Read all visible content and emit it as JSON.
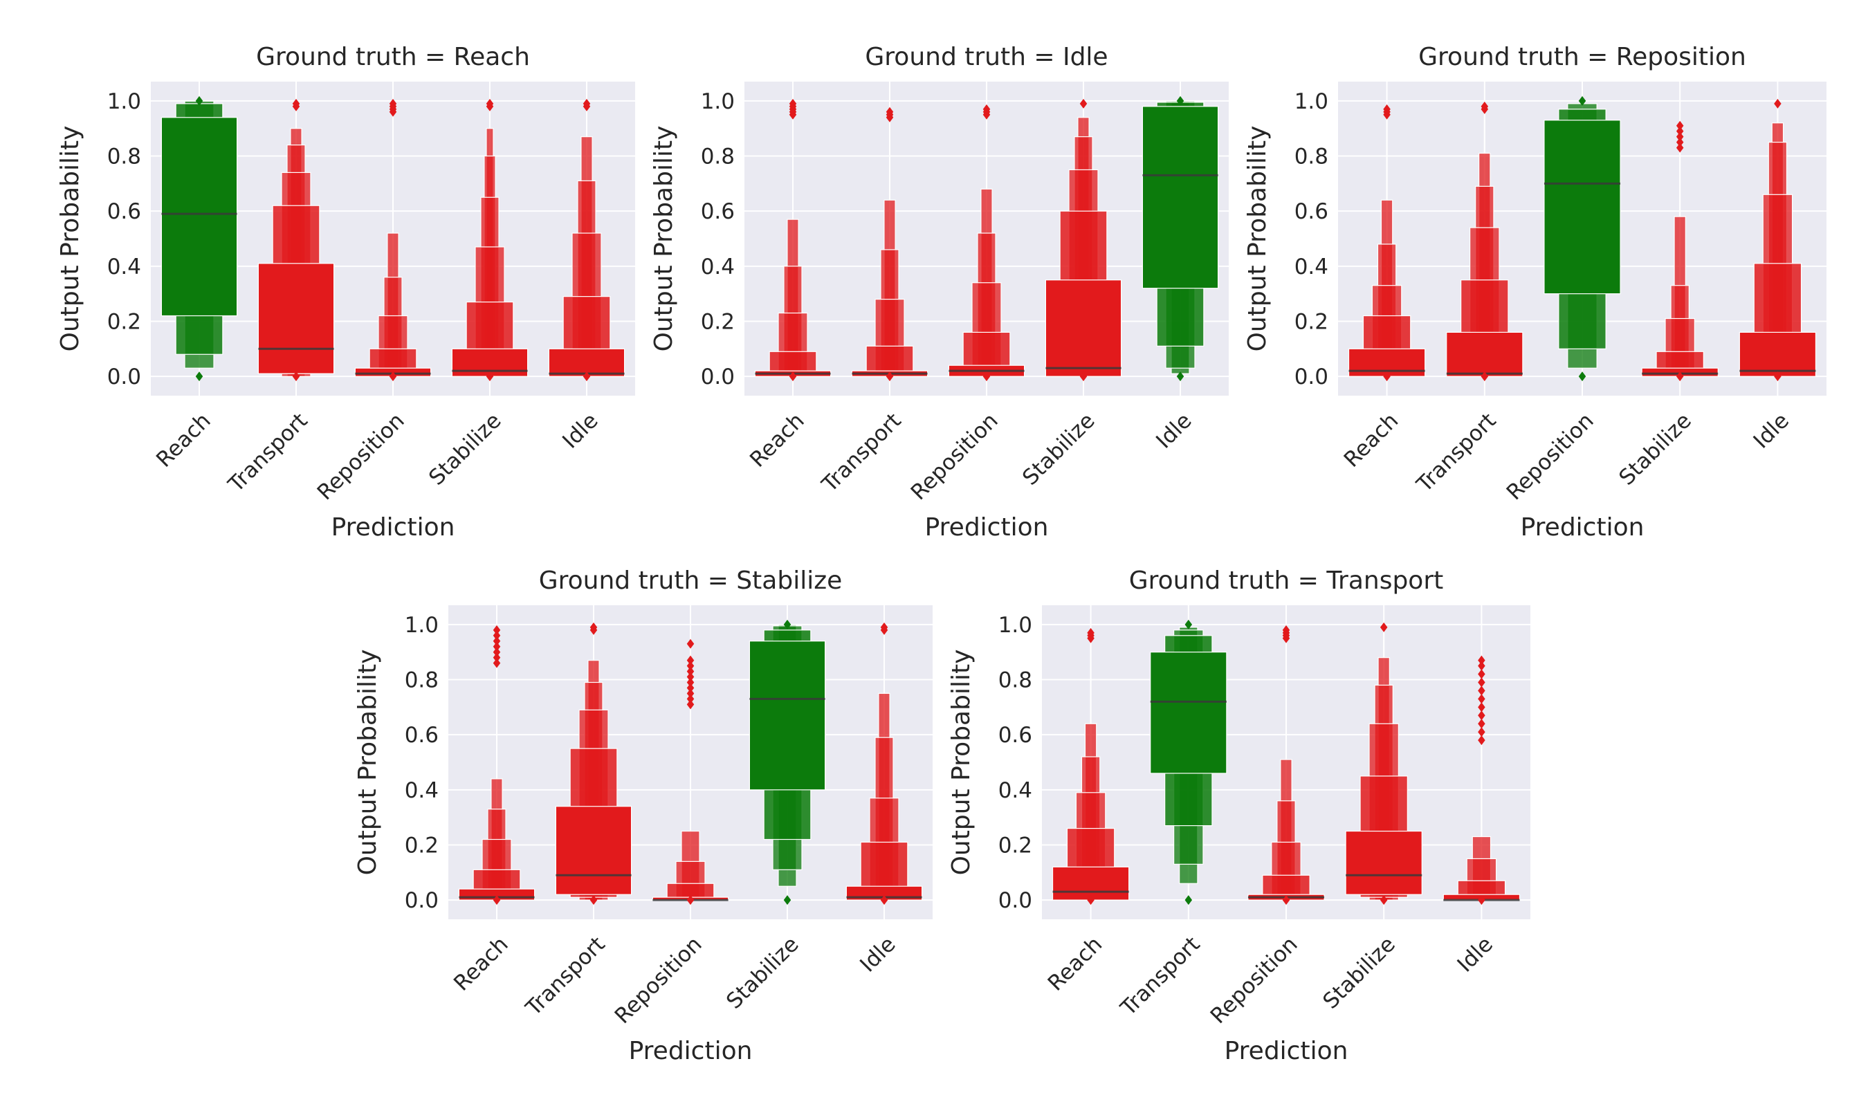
{
  "chart_data": [
    {
      "type": "boxen",
      "title": "Ground truth = Reach",
      "ground_truth": "Reach",
      "xlabel": "Prediction",
      "ylabel": "Output Probability",
      "ylim": [
        -0.07,
        1.07
      ],
      "yticks": [
        "0.0",
        "0.2",
        "0.4",
        "0.6",
        "0.8",
        "1.0"
      ],
      "categories": [
        "Reach",
        "Transport",
        "Reposition",
        "Stabilize",
        "Idle"
      ],
      "distributions": [
        {
          "category": "Reach",
          "correct": true,
          "median": 0.59,
          "levels": [
            [
              0.22,
              0.94
            ],
            [
              0.08,
              0.99
            ],
            [
              0.03,
              0.999
            ]
          ],
          "whisker": [
            0.03,
            1.0
          ],
          "outliers": [
            0.0,
            1.0
          ]
        },
        {
          "category": "Transport",
          "correct": false,
          "median": 0.1,
          "levels": [
            [
              0.01,
              0.41
            ],
            [
              0.01,
              0.62
            ],
            [
              0.0,
              0.74
            ],
            [
              0.0,
              0.84
            ],
            [
              0.0,
              0.9
            ]
          ],
          "whisker": [
            0.0,
            0.97
          ],
          "outliers": [
            0.0,
            0.99,
            0.98
          ]
        },
        {
          "category": "Reposition",
          "correct": false,
          "median": 0.01,
          "levels": [
            [
              0.0,
              0.03
            ],
            [
              0.0,
              0.1
            ],
            [
              0.0,
              0.22
            ],
            [
              0.0,
              0.36
            ],
            [
              0.0,
              0.52
            ]
          ],
          "whisker": [
            0.0,
            0.96
          ],
          "outliers": [
            0.0,
            0.96,
            0.97,
            0.98,
            0.99
          ]
        },
        {
          "category": "Stabilize",
          "correct": false,
          "median": 0.02,
          "levels": [
            [
              0.0,
              0.1
            ],
            [
              0.0,
              0.27
            ],
            [
              0.0,
              0.47
            ],
            [
              0.0,
              0.65
            ],
            [
              0.0,
              0.8
            ],
            [
              0.0,
              0.9
            ]
          ],
          "whisker": [
            0.0,
            0.97
          ],
          "outliers": [
            0.0,
            0.98,
            0.99
          ]
        },
        {
          "category": "Idle",
          "correct": false,
          "median": 0.01,
          "levels": [
            [
              0.0,
              0.1
            ],
            [
              0.0,
              0.29
            ],
            [
              0.0,
              0.52
            ],
            [
              0.0,
              0.71
            ],
            [
              0.0,
              0.87
            ]
          ],
          "whisker": [
            0.0,
            0.96
          ],
          "outliers": [
            0.0,
            0.98,
            0.99
          ]
        }
      ]
    },
    {
      "type": "boxen",
      "title": "Ground truth = Idle",
      "ground_truth": "Idle",
      "xlabel": "Prediction",
      "ylabel": "Output Probability",
      "ylim": [
        -0.07,
        1.07
      ],
      "yticks": [
        "0.0",
        "0.2",
        "0.4",
        "0.6",
        "0.8",
        "1.0"
      ],
      "categories": [
        "Reach",
        "Transport",
        "Reposition",
        "Stabilize",
        "Idle"
      ],
      "distributions": [
        {
          "category": "Reach",
          "correct": false,
          "median": 0.01,
          "levels": [
            [
              0.0,
              0.02
            ],
            [
              0.0,
              0.09
            ],
            [
              0.0,
              0.23
            ],
            [
              0.0,
              0.4
            ],
            [
              0.0,
              0.57
            ]
          ],
          "whisker": [
            0.0,
            0.94
          ],
          "outliers": [
            0.0,
            0.95,
            0.96,
            0.97,
            0.98,
            0.99
          ]
        },
        {
          "category": "Transport",
          "correct": false,
          "median": 0.01,
          "levels": [
            [
              0.0,
              0.02
            ],
            [
              0.0,
              0.11
            ],
            [
              0.0,
              0.28
            ],
            [
              0.0,
              0.46
            ],
            [
              0.0,
              0.64
            ]
          ],
          "whisker": [
            0.0,
            0.92
          ],
          "outliers": [
            0.0,
            0.94,
            0.95,
            0.96
          ]
        },
        {
          "category": "Reposition",
          "correct": false,
          "median": 0.02,
          "levels": [
            [
              0.0,
              0.04
            ],
            [
              0.0,
              0.16
            ],
            [
              0.0,
              0.34
            ],
            [
              0.0,
              0.52
            ],
            [
              0.0,
              0.68
            ]
          ],
          "whisker": [
            0.0,
            0.93
          ],
          "outliers": [
            0.0,
            0.95,
            0.96,
            0.97
          ]
        },
        {
          "category": "Stabilize",
          "correct": false,
          "median": 0.03,
          "levels": [
            [
              0.0,
              0.35
            ],
            [
              0.0,
              0.6
            ],
            [
              0.0,
              0.75
            ],
            [
              0.0,
              0.87
            ],
            [
              0.0,
              0.94
            ]
          ],
          "whisker": [
            0.0,
            0.98
          ],
          "outliers": [
            0.0,
            0.99
          ]
        },
        {
          "category": "Idle",
          "correct": true,
          "median": 0.73,
          "levels": [
            [
              0.32,
              0.98
            ],
            [
              0.11,
              0.995
            ],
            [
              0.03,
              0.999
            ],
            [
              0.01,
              1.0
            ]
          ],
          "whisker": [
            0.005,
            1.0
          ],
          "outliers": [
            0.0,
            1.0
          ]
        }
      ]
    },
    {
      "type": "boxen",
      "title": "Ground truth = Reposition",
      "ground_truth": "Reposition",
      "xlabel": "Prediction",
      "ylabel": "Output Probability",
      "ylim": [
        -0.07,
        1.07
      ],
      "yticks": [
        "0.0",
        "0.2",
        "0.4",
        "0.6",
        "0.8",
        "1.0"
      ],
      "categories": [
        "Reach",
        "Transport",
        "Reposition",
        "Stabilize",
        "Idle"
      ],
      "distributions": [
        {
          "category": "Reach",
          "correct": false,
          "median": 0.02,
          "levels": [
            [
              0.0,
              0.1
            ],
            [
              0.0,
              0.22
            ],
            [
              0.0,
              0.33
            ],
            [
              0.0,
              0.48
            ],
            [
              0.0,
              0.64
            ]
          ],
          "whisker": [
            0.0,
            0.94
          ],
          "outliers": [
            0.0,
            0.95,
            0.96,
            0.97
          ]
        },
        {
          "category": "Transport",
          "correct": false,
          "median": 0.01,
          "levels": [
            [
              0.0,
              0.16
            ],
            [
              0.0,
              0.35
            ],
            [
              0.0,
              0.54
            ],
            [
              0.0,
              0.69
            ],
            [
              0.0,
              0.81
            ]
          ],
          "whisker": [
            0.0,
            0.95
          ],
          "outliers": [
            0.0,
            0.97,
            0.98
          ]
        },
        {
          "category": "Reposition",
          "correct": true,
          "median": 0.7,
          "levels": [
            [
              0.3,
              0.93
            ],
            [
              0.1,
              0.97
            ],
            [
              0.03,
              0.99
            ]
          ],
          "whisker": [
            0.01,
            1.0
          ],
          "outliers": [
            0.0,
            1.0
          ]
        },
        {
          "category": "Stabilize",
          "correct": false,
          "median": 0.01,
          "levels": [
            [
              0.0,
              0.03
            ],
            [
              0.0,
              0.09
            ],
            [
              0.0,
              0.21
            ],
            [
              0.0,
              0.33
            ],
            [
              0.0,
              0.58
            ]
          ],
          "whisker": [
            0.0,
            0.82
          ],
          "outliers": [
            0.0,
            0.83,
            0.85,
            0.87,
            0.89,
            0.91
          ]
        },
        {
          "category": "Idle",
          "correct": false,
          "median": 0.02,
          "levels": [
            [
              0.0,
              0.16
            ],
            [
              0.0,
              0.41
            ],
            [
              0.0,
              0.66
            ],
            [
              0.0,
              0.85
            ],
            [
              0.0,
              0.92
            ]
          ],
          "whisker": [
            0.0,
            0.97
          ],
          "outliers": [
            0.0,
            0.99
          ]
        }
      ]
    },
    {
      "type": "boxen",
      "title": "Ground truth = Stabilize",
      "ground_truth": "Stabilize",
      "xlabel": "Prediction",
      "ylabel": "Output Probability",
      "ylim": [
        -0.07,
        1.07
      ],
      "yticks": [
        "0.0",
        "0.2",
        "0.4",
        "0.6",
        "0.8",
        "1.0"
      ],
      "categories": [
        "Reach",
        "Transport",
        "Reposition",
        "Stabilize",
        "Idle"
      ],
      "distributions": [
        {
          "category": "Reach",
          "correct": false,
          "median": 0.01,
          "levels": [
            [
              0.0,
              0.04
            ],
            [
              0.0,
              0.11
            ],
            [
              0.0,
              0.22
            ],
            [
              0.0,
              0.33
            ],
            [
              0.0,
              0.44
            ]
          ],
          "whisker": [
            0.0,
            0.85
          ],
          "outliers": [
            0.0,
            0.86,
            0.88,
            0.9,
            0.92,
            0.94,
            0.96,
            0.98
          ]
        },
        {
          "category": "Transport",
          "correct": false,
          "median": 0.09,
          "levels": [
            [
              0.02,
              0.34
            ],
            [
              0.01,
              0.55
            ],
            [
              0.0,
              0.69
            ],
            [
              0.0,
              0.79
            ],
            [
              0.0,
              0.87
            ]
          ],
          "whisker": [
            0.0,
            0.97
          ],
          "outliers": [
            0.0,
            0.98,
            0.99
          ]
        },
        {
          "category": "Reposition",
          "correct": false,
          "median": 0.0,
          "levels": [
            [
              0.0,
              0.01
            ],
            [
              0.0,
              0.06
            ],
            [
              0.0,
              0.14
            ],
            [
              0.0,
              0.25
            ]
          ],
          "whisker": [
            0.0,
            0.68
          ],
          "outliers": [
            0.0,
            0.71,
            0.73,
            0.75,
            0.77,
            0.79,
            0.81,
            0.83,
            0.85,
            0.87,
            0.93
          ]
        },
        {
          "category": "Stabilize",
          "correct": true,
          "median": 0.73,
          "levels": [
            [
              0.4,
              0.94
            ],
            [
              0.22,
              0.98
            ],
            [
              0.11,
              0.995
            ],
            [
              0.05,
              0.999
            ]
          ],
          "whisker": [
            0.01,
            1.0
          ],
          "outliers": [
            0.0,
            1.0
          ]
        },
        {
          "category": "Idle",
          "correct": false,
          "median": 0.01,
          "levels": [
            [
              0.0,
              0.05
            ],
            [
              0.0,
              0.21
            ],
            [
              0.0,
              0.37
            ],
            [
              0.0,
              0.59
            ],
            [
              0.0,
              0.75
            ]
          ],
          "whisker": [
            0.0,
            0.97
          ],
          "outliers": [
            0.0,
            0.98,
            0.99
          ]
        }
      ]
    },
    {
      "type": "boxen",
      "title": "Ground truth = Transport",
      "ground_truth": "Transport",
      "xlabel": "Prediction",
      "ylabel": "Output Probability",
      "ylim": [
        -0.07,
        1.07
      ],
      "yticks": [
        "0.0",
        "0.2",
        "0.4",
        "0.6",
        "0.8",
        "1.0"
      ],
      "categories": [
        "Reach",
        "Transport",
        "Reposition",
        "Stabilize",
        "Idle"
      ],
      "distributions": [
        {
          "category": "Reach",
          "correct": false,
          "median": 0.03,
          "levels": [
            [
              0.0,
              0.12
            ],
            [
              0.0,
              0.26
            ],
            [
              0.0,
              0.39
            ],
            [
              0.0,
              0.52
            ],
            [
              0.0,
              0.64
            ]
          ],
          "whisker": [
            0.0,
            0.94
          ],
          "outliers": [
            0.0,
            0.95,
            0.96,
            0.97
          ]
        },
        {
          "category": "Transport",
          "correct": true,
          "median": 0.72,
          "levels": [
            [
              0.46,
              0.9
            ],
            [
              0.27,
              0.96
            ],
            [
              0.13,
              0.98
            ],
            [
              0.06,
              0.99
            ]
          ],
          "whisker": [
            0.01,
            1.0
          ],
          "outliers": [
            0.0,
            1.0
          ]
        },
        {
          "category": "Reposition",
          "correct": false,
          "median": 0.01,
          "levels": [
            [
              0.0,
              0.02
            ],
            [
              0.0,
              0.09
            ],
            [
              0.0,
              0.21
            ],
            [
              0.0,
              0.36
            ],
            [
              0.0,
              0.51
            ]
          ],
          "whisker": [
            0.0,
            0.94
          ],
          "outliers": [
            0.0,
            0.95,
            0.96,
            0.97,
            0.98
          ]
        },
        {
          "category": "Stabilize",
          "correct": false,
          "median": 0.09,
          "levels": [
            [
              0.02,
              0.25
            ],
            [
              0.01,
              0.45
            ],
            [
              0.0,
              0.64
            ],
            [
              0.0,
              0.78
            ],
            [
              0.0,
              0.88
            ]
          ],
          "whisker": [
            0.0,
            0.97
          ],
          "outliers": [
            0.0,
            0.99
          ]
        },
        {
          "category": "Idle",
          "correct": false,
          "median": 0.0,
          "levels": [
            [
              0.0,
              0.02
            ],
            [
              0.0,
              0.07
            ],
            [
              0.0,
              0.15
            ],
            [
              0.0,
              0.23
            ]
          ],
          "whisker": [
            0.0,
            0.55
          ],
          "outliers": [
            0.0,
            0.58,
            0.61,
            0.64,
            0.67,
            0.7,
            0.73,
            0.76,
            0.79,
            0.82,
            0.85,
            0.87
          ]
        }
      ]
    }
  ],
  "colors": {
    "panel_background": "#eaeaf2",
    "grid": "#ffffff",
    "correct": "#0c7b0c",
    "incorrect": "#e21a1c",
    "median": "#3a3a3a",
    "text": "#262626"
  }
}
